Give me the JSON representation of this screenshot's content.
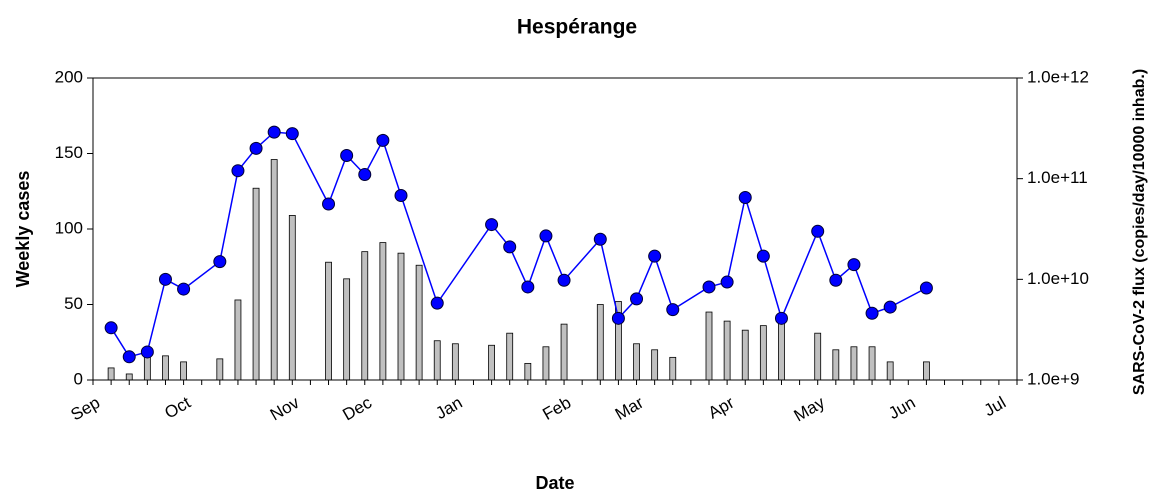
{
  "chart_data": {
    "type": "combo",
    "title": "Hespérange",
    "x_label": "Date",
    "y_label": "Weekly cases",
    "y2_label": "SARS-CoV-2 flux (copies/day/10000 inhab.)",
    "categories": [
      "Sep",
      null,
      null,
      null,
      null,
      "Oct",
      null,
      null,
      null,
      null,
      null,
      "Nov",
      null,
      null,
      null,
      "Dec",
      null,
      null,
      null,
      null,
      "Jan",
      null,
      null,
      null,
      null,
      null,
      "Feb",
      null,
      null,
      null,
      "Mar",
      null,
      null,
      null,
      null,
      "Apr",
      null,
      null,
      null,
      null,
      "May",
      null,
      null,
      null,
      null,
      "Jun",
      null,
      null,
      null,
      null,
      "Jul",
      null
    ],
    "ylim": [
      0,
      200
    ],
    "yticks": [
      0,
      50,
      100,
      150,
      200
    ],
    "y2lim": [
      1000000000.0,
      1000000000000.0
    ],
    "y2_log": true,
    "y2ticks": [
      {
        "value": 1000000000.0,
        "label": "1.0e+9"
      },
      {
        "value": 10000000000.0,
        "label": "1.0e+10"
      },
      {
        "value": 100000000000.0,
        "label": "1.0e+11"
      },
      {
        "value": 1000000000000.0,
        "label": "1.0e+12"
      }
    ],
    "grid": false,
    "connect_gaps": true,
    "series": [
      {
        "type": "bar",
        "color": "#c0c0c0",
        "values": [
          null,
          8,
          4,
          16,
          16,
          12,
          null,
          14,
          53,
          127,
          146,
          109,
          null,
          78,
          67,
          85,
          91,
          84,
          76,
          26,
          24,
          null,
          23,
          31,
          11,
          22,
          37,
          null,
          50,
          52,
          24,
          20,
          15,
          null,
          45,
          39,
          33,
          36,
          39,
          null,
          31,
          20,
          22,
          22,
          12,
          null,
          12,
          null,
          null,
          null,
          null,
          null
        ]
      },
      {
        "type": "line",
        "axis": "y2",
        "color": "#0000ff",
        "values": [
          null,
          3300000000.0,
          1700000000.0,
          1900000000.0,
          10000000000.0,
          8000000000.0,
          null,
          15000000000.0,
          120000000000.0,
          200000000000.0,
          290000000000.0,
          280000000000.0,
          null,
          56000000000.0,
          170000000000.0,
          110000000000.0,
          240000000000.0,
          68000000000.0,
          null,
          5800000000.0,
          null,
          null,
          35000000000.0,
          21000000000.0,
          8400000000.0,
          27000000000.0,
          9800000000.0,
          null,
          25000000000.0,
          4100000000.0,
          6400000000.0,
          17000000000.0,
          5000000000.0,
          null,
          8400000000.0,
          9400000000.0,
          65000000000.0,
          17000000000.0,
          4100000000.0,
          null,
          30000000000.0,
          9800000000.0,
          14000000000.0,
          4600000000.0,
          5300000000.0,
          null,
          8200000000.0,
          null,
          null,
          null,
          null,
          null
        ]
      }
    ]
  }
}
